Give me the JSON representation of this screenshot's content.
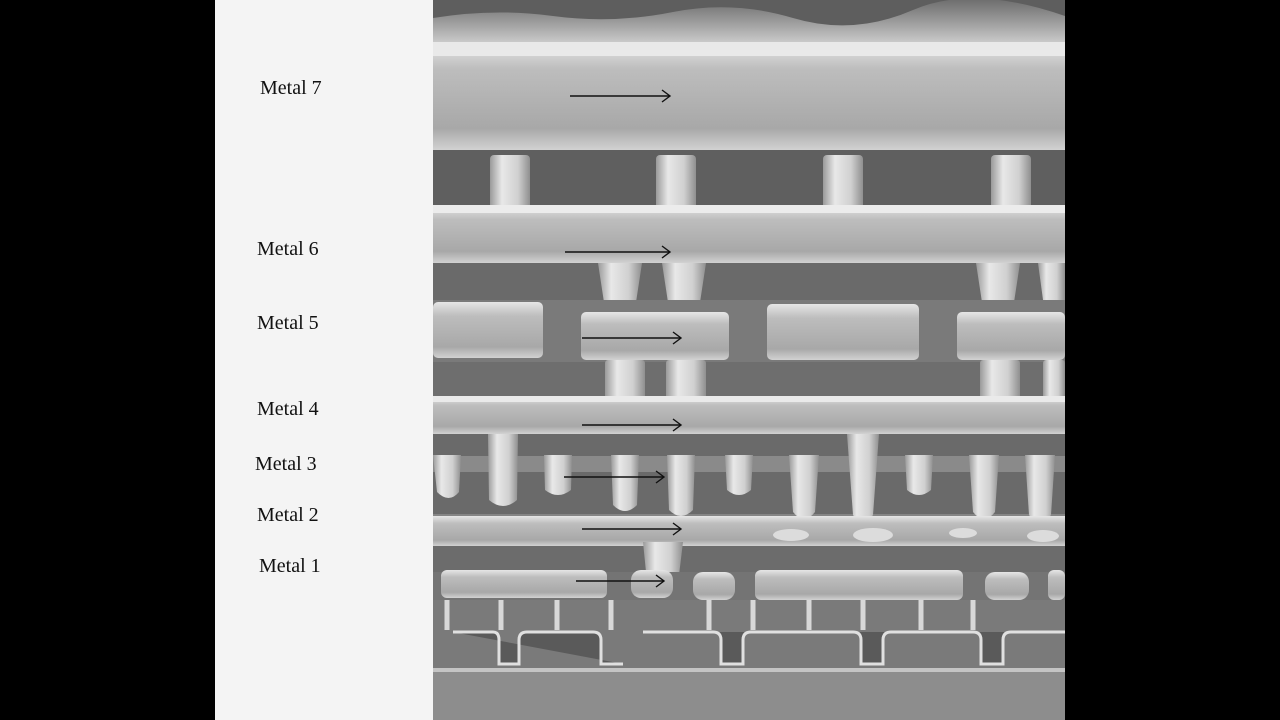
{
  "figure": {
    "colors": {
      "background": "#000000",
      "panel": "#f4f4f4",
      "label_text": "#111111"
    },
    "layers": [
      {
        "id": "m7",
        "label": "Metal 7"
      },
      {
        "id": "m6",
        "label": "Metal 6"
      },
      {
        "id": "m5",
        "label": "Metal 5"
      },
      {
        "id": "m4",
        "label": "Metal 4"
      },
      {
        "id": "m3",
        "label": "Metal 3"
      },
      {
        "id": "m2",
        "label": "Metal 2"
      },
      {
        "id": "m1",
        "label": "Metal 1"
      }
    ]
  }
}
